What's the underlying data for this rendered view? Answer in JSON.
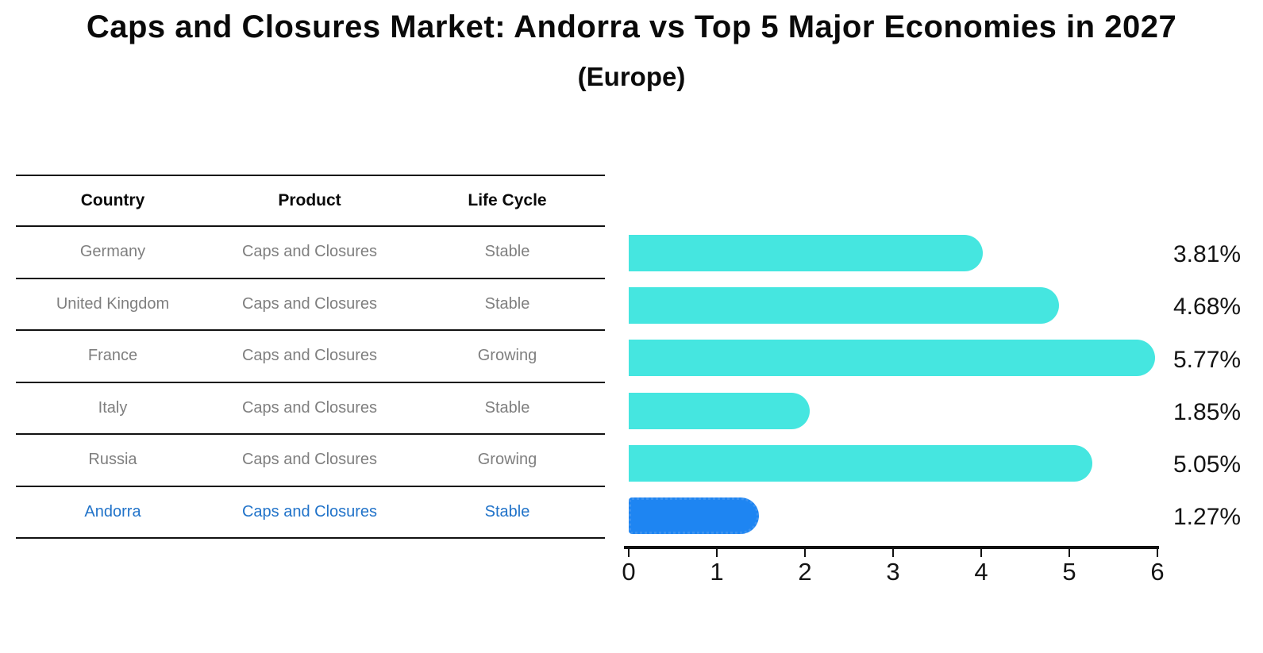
{
  "title": "Caps and Closures Market: Andorra vs Top 5 Major Economies in 2027",
  "subtitle": "(Europe)",
  "table": {
    "headers": [
      "Country",
      "Product",
      "Life Cycle"
    ],
    "rows": [
      {
        "country": "Germany",
        "product": "Caps and Closures",
        "life_cycle": "Stable",
        "highlight": false
      },
      {
        "country": "United Kingdom",
        "product": "Caps and Closures",
        "life_cycle": "Stable",
        "highlight": false
      },
      {
        "country": "France",
        "product": "Caps and Closures",
        "life_cycle": "Growing",
        "highlight": false
      },
      {
        "country": "Italy",
        "product": "Caps and Closures",
        "life_cycle": "Stable",
        "highlight": false
      },
      {
        "country": "Russia",
        "product": "Caps and Closures",
        "life_cycle": "Growing",
        "highlight": false
      },
      {
        "country": "Andorra",
        "product": "Caps and Closures",
        "life_cycle": "Stable",
        "highlight": true
      }
    ]
  },
  "chart_data": {
    "type": "bar",
    "orientation": "horizontal",
    "title": "Caps and Closures Market: Andorra vs Top 5 Major Economies in 2027",
    "subtitle": "(Europe)",
    "categories": [
      "Germany",
      "United Kingdom",
      "France",
      "Italy",
      "Russia",
      "Andorra"
    ],
    "values": [
      3.81,
      4.68,
      5.77,
      1.85,
      5.05,
      1.27
    ],
    "value_labels": [
      "3.81%",
      "4.68%",
      "5.77%",
      "1.85%",
      "5.05%",
      "1.27%"
    ],
    "unit": "percent CAGR/share shown as %",
    "xlim": [
      0,
      6
    ],
    "x_ticks": [
      0,
      1,
      2,
      3,
      4,
      5,
      6
    ],
    "grid": false,
    "legend": "none",
    "highlight_index": 5
  },
  "colors": {
    "bar": "#45e6e0",
    "highlight_bar": "#1e85f2",
    "highlight_border": "#3b92f0",
    "highlight_text": "#2173c9",
    "table_text": "#7f7f7f",
    "header_text": "#0a0a0a",
    "axis": "#111111"
  }
}
